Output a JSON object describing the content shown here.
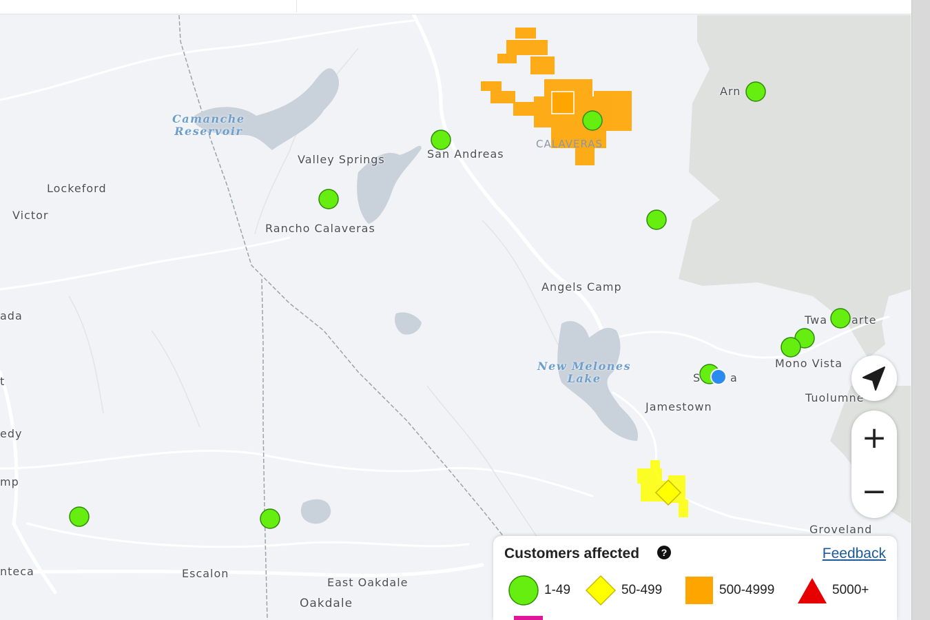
{
  "places": [
    {
      "name": "Lockeford"
    },
    {
      "name": "Victor"
    },
    {
      "name": "Valley Springs"
    },
    {
      "name": "San Andreas"
    },
    {
      "name": "Rancho Calaveras"
    },
    {
      "name": "Angels Camp"
    },
    {
      "name": "Arn"
    },
    {
      "name": "Twa"
    },
    {
      "name": "arte"
    },
    {
      "name": "Mono Vista"
    },
    {
      "name": "S"
    },
    {
      "name": "a"
    },
    {
      "name": "Tuolumne"
    },
    {
      "name": "Jamestown"
    },
    {
      "name": "Groveland"
    },
    {
      "name": "ada"
    },
    {
      "name": "t"
    },
    {
      "name": "edy"
    },
    {
      "name": "mp"
    },
    {
      "name": "nteca"
    },
    {
      "name": "Escalon"
    },
    {
      "name": "East Oakdale"
    },
    {
      "name": "Oakdale"
    }
  ],
  "water_bodies": [
    {
      "name": "Camanche\nReservoir"
    },
    {
      "name": "New Melones\nLake"
    }
  ],
  "county_label": "CALAVERAS",
  "controls": {
    "zoom_in": "+",
    "zoom_out": "−"
  },
  "legend": {
    "title": "Customers affected",
    "feedback": "Feedback",
    "help_icon": "?",
    "items": [
      {
        "label": "1-49",
        "shape": "circle",
        "color": "#66ee11"
      },
      {
        "label": "50-499",
        "shape": "diamond",
        "color": "#ffff00"
      },
      {
        "label": "500-4999",
        "shape": "square",
        "color": "#ffa500"
      },
      {
        "label": "5000+",
        "shape": "triangle",
        "color": "#e60000"
      }
    ]
  },
  "colors": {
    "land": "#f1f3f6",
    "shaded_land": "#dfe1df",
    "water": "#c9d1da",
    "outage_green": "#66ee11",
    "outage_yellow": "#ffff00",
    "outage_orange": "#ffa500",
    "location_blue": "#2a8cf0"
  }
}
